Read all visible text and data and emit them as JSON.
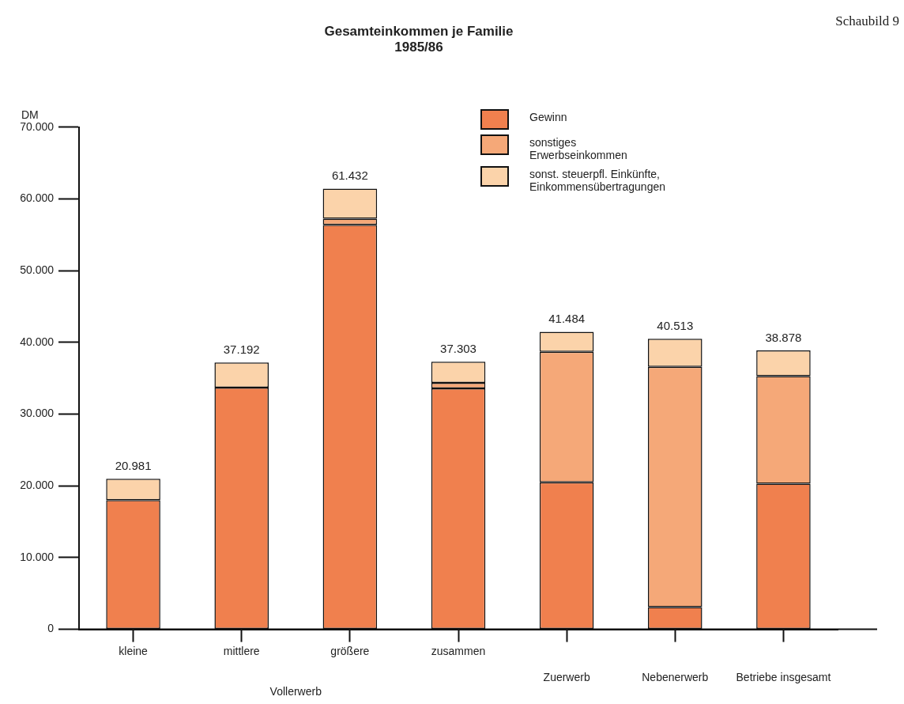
{
  "chart_data": {
    "type": "bar",
    "title": "Gesamteinkommen je Familie",
    "subtitle": "1985/86",
    "ylabel": "DM",
    "categories": [
      "kleine",
      "mittlere",
      "größere",
      "zusammen",
      "Zuerwerb",
      "Nebenerwerb",
      "Betriebe insgesamt"
    ],
    "stacked": true,
    "series": [
      {
        "name": "Gewinn",
        "color": "#f0804e",
        "values": [
          18000,
          33700,
          56400,
          33600,
          20500,
          3100,
          20300
        ]
      },
      {
        "name": "sonstiges Erwerbseinkommen",
        "color": "#f5a878",
        "values": [
          0,
          0,
          850,
          750,
          18200,
          33500,
          15000
        ]
      },
      {
        "name": "sonst. steuerpfl. Einkünfte, Einkommensübertragungen",
        "color": "#fbd3aa",
        "values": [
          2981,
          3492,
          4182,
          2953,
          2784,
          3913,
          3578
        ]
      }
    ],
    "totals": [
      "20.981",
      "37.192",
      "61.432",
      "37.303",
      "41.484",
      "40.513",
      "38.878"
    ],
    "ylim": [
      0,
      70000
    ],
    "yticks": [
      0,
      {
        "value": 10000,
        "label": "10.000"
      },
      {
        "value": 20000,
        "label": "20.000"
      },
      {
        "value": 30000,
        "label": "30.000"
      },
      {
        "value": 40000,
        "label": "40.000"
      },
      {
        "value": 50000,
        "label": "50.000"
      },
      {
        "value": 60000,
        "label": "60.000"
      },
      {
        "value": 70000,
        "label": "70.000"
      }
    ],
    "grid": false,
    "legend": "top right",
    "annotations": [
      "Vollerwerb",
      "Schaubild 9"
    ]
  }
}
